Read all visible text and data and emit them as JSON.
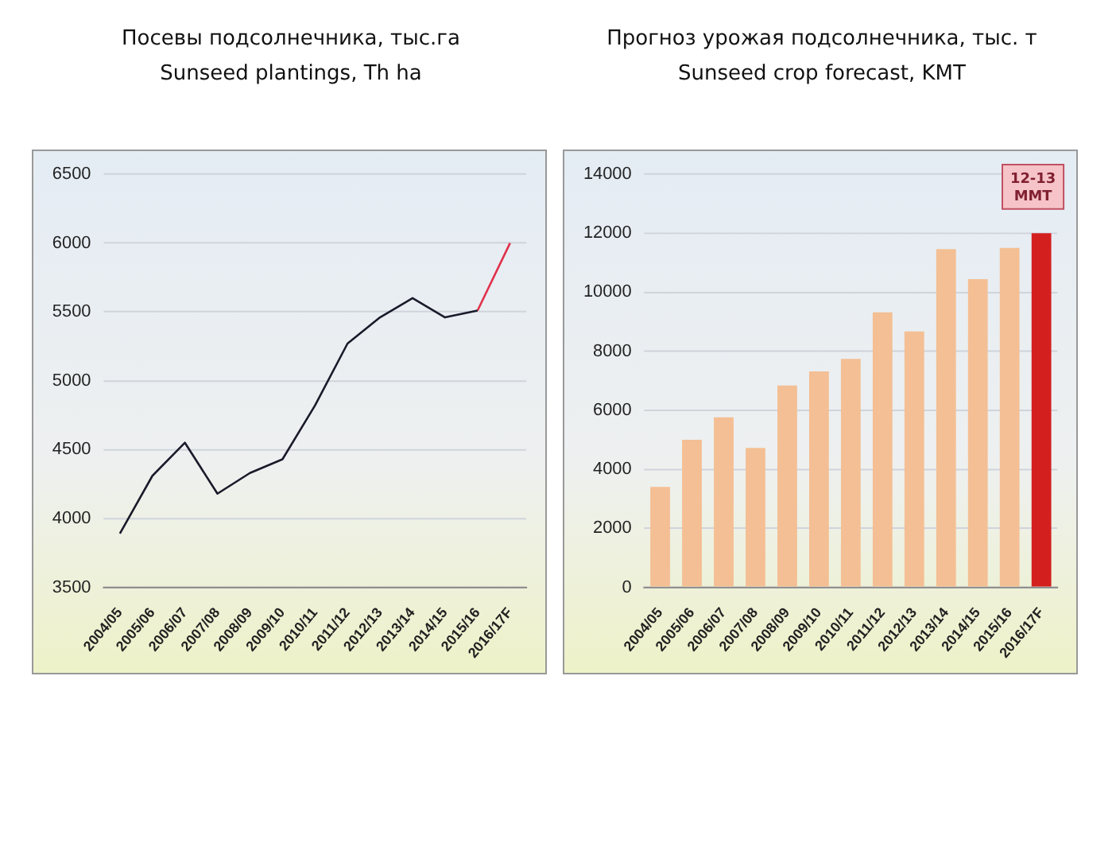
{
  "chart_data": [
    {
      "type": "line",
      "title": "Посевы  подсолнечника, тыс.га",
      "subtitle": "Sunseed plantings, Th ha",
      "categories": [
        "2004/05",
        "2005/06",
        "2006/07",
        "2007/08",
        "2008/09",
        "2009/10",
        "2010/11",
        "2011/12",
        "2012/13",
        "2013/14",
        "2014/15",
        "2015/16",
        "2016/17F"
      ],
      "series": [
        {
          "color": "#1a1a2a",
          "values": [
            3890,
            4310,
            4550,
            4180,
            4330,
            4430,
            4820,
            5270,
            5460,
            5600,
            5460,
            5510,
            null
          ]
        },
        {
          "color": "#e0304a",
          "values": [
            null,
            null,
            null,
            null,
            null,
            null,
            null,
            null,
            null,
            null,
            null,
            5510,
            6000
          ]
        }
      ],
      "ylim": [
        3500,
        6500
      ],
      "yticks": [
        3500,
        4000,
        4500,
        5000,
        5500,
        6000,
        6500
      ],
      "grid": "y",
      "legend": false,
      "marker": "none",
      "line_style": "solid"
    },
    {
      "type": "bar",
      "title": "Прогноз урожая подсолнечника, тыс. т",
      "subtitle": "Sunseed crop forecast, KMT",
      "categories": [
        "2004/05",
        "2005/06",
        "2006/07",
        "2007/08",
        "2008/09",
        "2009/10",
        "2010/11",
        "2011/12",
        "2012/13",
        "2013/14",
        "2014/15",
        "2015/16",
        "2016/17F"
      ],
      "values": [
        3400,
        5000,
        5760,
        4720,
        6840,
        7320,
        7740,
        9320,
        8670,
        11460,
        10440,
        11500,
        12000
      ],
      "colors": [
        "#f4bf94",
        "#f4bf94",
        "#f4bf94",
        "#f4bf94",
        "#f4bf94",
        "#f4bf94",
        "#f4bf94",
        "#f4bf94",
        "#f4bf94",
        "#f4bf94",
        "#f4bf94",
        "#f4bf94",
        "#d41f1f"
      ],
      "ylim": [
        0,
        14000
      ],
      "yticks": [
        0,
        2000,
        4000,
        6000,
        8000,
        10000,
        12000,
        14000
      ],
      "grid": "y",
      "legend": false,
      "annotations": [
        "12-13 MMT"
      ]
    }
  ]
}
